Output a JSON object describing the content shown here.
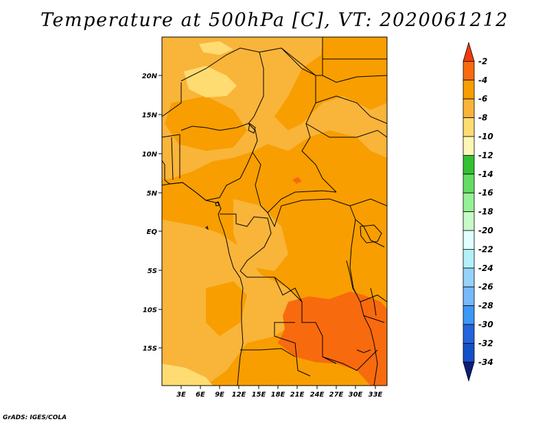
{
  "title": "Temperature at 500hPa [C], VT: 2020061212",
  "map": {
    "lat_labels": [
      "20N",
      "15N",
      "10N",
      "5N",
      "EQ",
      "5S",
      "10S",
      "15S"
    ],
    "lon_labels": [
      "3E",
      "6E",
      "9E",
      "12E",
      "15E",
      "18E",
      "21E",
      "24E",
      "27E",
      "30E",
      "33E"
    ]
  },
  "colorbar": {
    "labels": [
      "-2",
      "-4",
      "-6",
      "-8",
      "-10",
      "-12",
      "-14",
      "-16",
      "-18",
      "-20",
      "-22",
      "-24",
      "-26",
      "-28",
      "-30",
      "-32",
      "-34"
    ],
    "colors": [
      "#f03c0a",
      "#f86a0e",
      "#f89e00",
      "#f9b43a",
      "#fedc72",
      "#fdf6b6",
      "#32c132",
      "#64dc64",
      "#96f096",
      "#c8fac8",
      "#e1ffff",
      "#b4f0fa",
      "#96d2fa",
      "#78b9fa",
      "#3c97f5",
      "#2364dc",
      "#1450c8",
      "#0a1e78"
    ]
  },
  "credit": "GrADS: IGES/COLA"
}
